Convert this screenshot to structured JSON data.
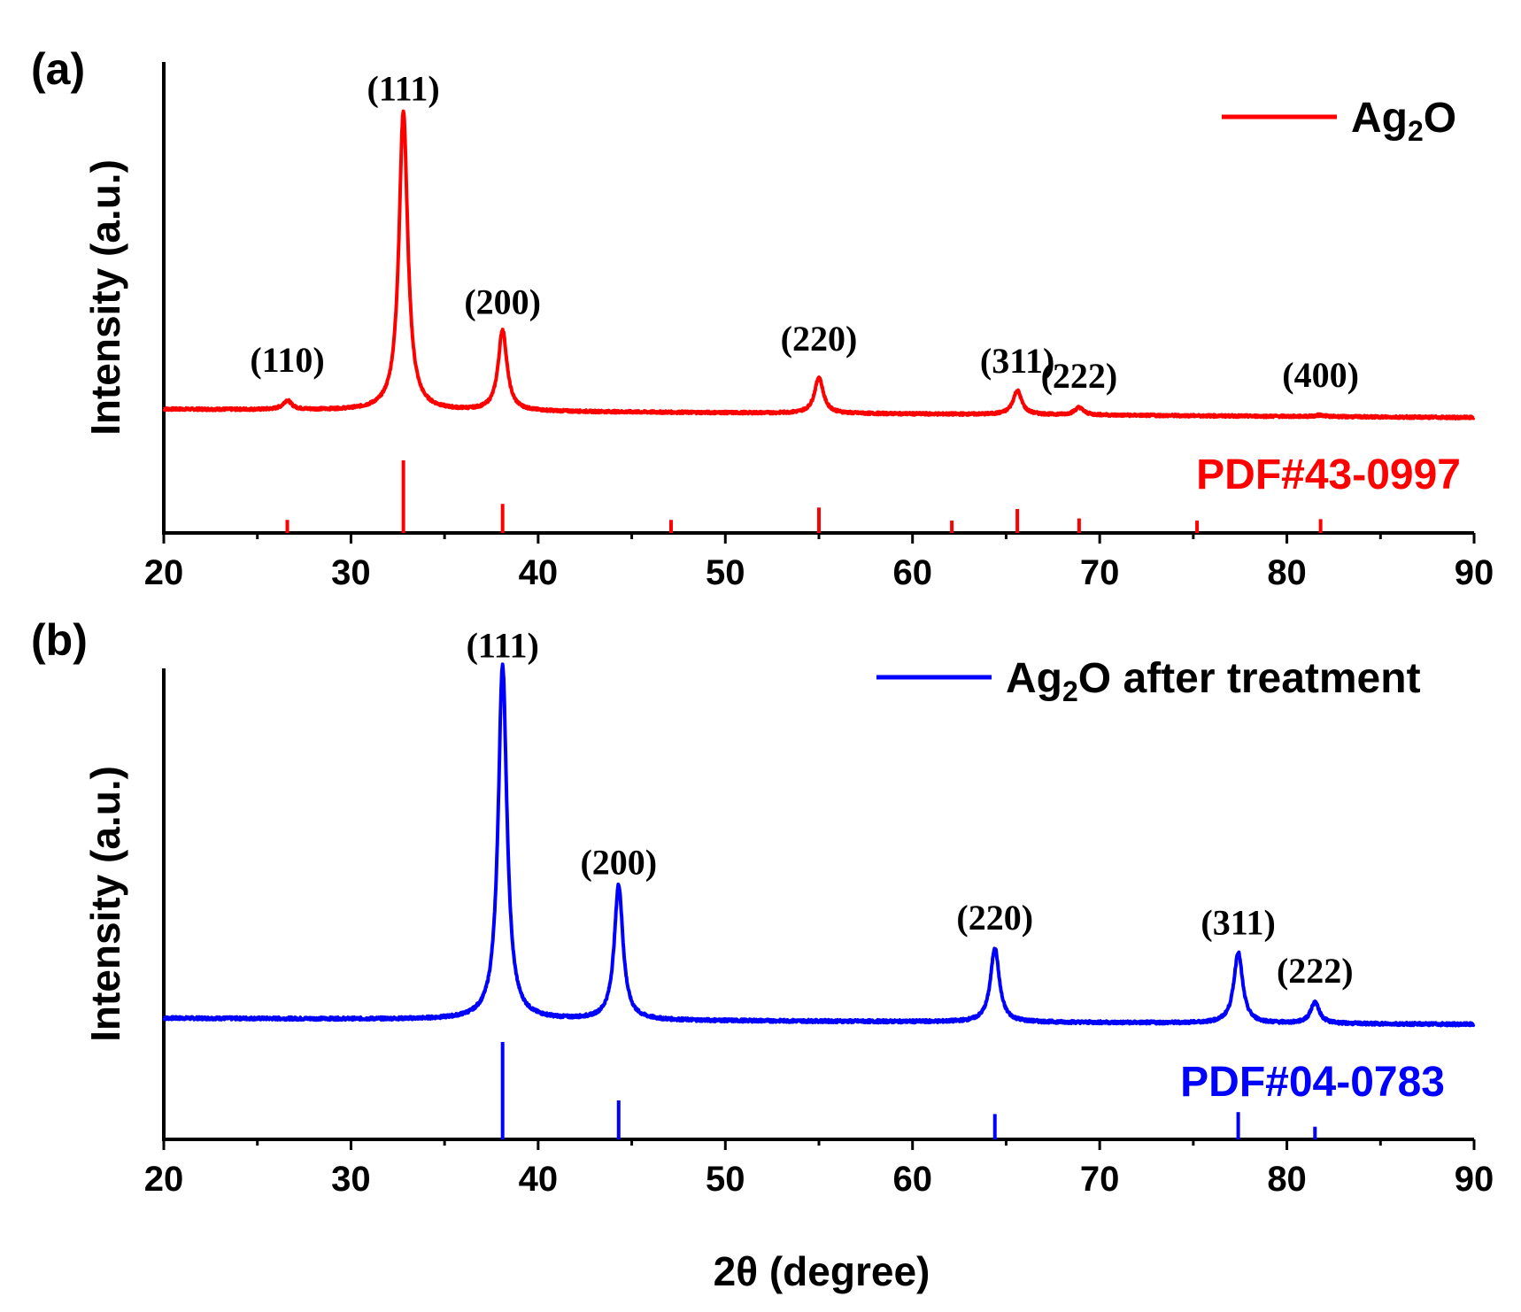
{
  "figure": {
    "xlabel": "2θ (degree)"
  },
  "chart_data": [
    {
      "type": "line",
      "panel_label": "(a)",
      "xlim": [
        20,
        90
      ],
      "xticks": [
        20,
        30,
        40,
        50,
        60,
        70,
        80,
        90
      ],
      "ylabel": "Intensity (a.u.)",
      "color": "#ff0000",
      "legend": {
        "base": "Ag",
        "sub": "2",
        "rest": "O",
        "placement": "top-right"
      },
      "reference_label": "PDF#43-0997",
      "series": [
        {
          "name": "Ag2O",
          "baseline": 0.08,
          "peaks": [
            {
              "x": 26.6,
              "h": 0.03,
              "label": "(110)"
            },
            {
              "x": 32.8,
              "h": 1.0,
              "label": "(111)"
            },
            {
              "x": 38.1,
              "h": 0.27,
              "label": "(200)"
            },
            {
              "x": 55.0,
              "h": 0.12,
              "label": "(220)"
            },
            {
              "x": 65.6,
              "h": 0.08,
              "label": "(311)"
            },
            {
              "x": 68.9,
              "h": 0.025,
              "label": "(222)"
            },
            {
              "x": 81.8,
              "h": 0.005,
              "label": "(400)"
            }
          ]
        }
      ],
      "reference_lines": [
        {
          "x": 26.6,
          "h": 0.18
        },
        {
          "x": 32.8,
          "h": 1.0
        },
        {
          "x": 38.1,
          "h": 0.4
        },
        {
          "x": 47.1,
          "h": 0.18
        },
        {
          "x": 55.0,
          "h": 0.35
        },
        {
          "x": 62.1,
          "h": 0.17
        },
        {
          "x": 65.6,
          "h": 0.33
        },
        {
          "x": 68.9,
          "h": 0.2
        },
        {
          "x": 75.2,
          "h": 0.17
        },
        {
          "x": 81.8,
          "h": 0.19
        }
      ]
    },
    {
      "type": "line",
      "panel_label": "(b)",
      "xlim": [
        20,
        90
      ],
      "xticks": [
        20,
        30,
        40,
        50,
        60,
        70,
        80,
        90
      ],
      "ylabel": "Intensity (a.u.)",
      "color": "#0000ff",
      "legend": {
        "base": "Ag",
        "sub": "2",
        "rest": "O after treatment",
        "placement": "top-right"
      },
      "reference_label": "PDF#04-0783",
      "series": [
        {
          "name": "Ag2O after treatment",
          "baseline": 0.05,
          "peaks": [
            {
              "x": 38.1,
              "h": 1.0,
              "label": "(111)"
            },
            {
              "x": 44.3,
              "h": 0.38,
              "label": "(200)"
            },
            {
              "x": 64.4,
              "h": 0.21,
              "label": "(220)"
            },
            {
              "x": 77.4,
              "h": 0.2,
              "label": "(311)"
            },
            {
              "x": 81.5,
              "h": 0.06,
              "label": "(222)"
            }
          ]
        }
      ],
      "reference_lines": [
        {
          "x": 38.1,
          "h": 1.0
        },
        {
          "x": 44.3,
          "h": 0.4
        },
        {
          "x": 64.4,
          "h": 0.26
        },
        {
          "x": 77.4,
          "h": 0.28
        },
        {
          "x": 81.5,
          "h": 0.13
        }
      ]
    }
  ]
}
